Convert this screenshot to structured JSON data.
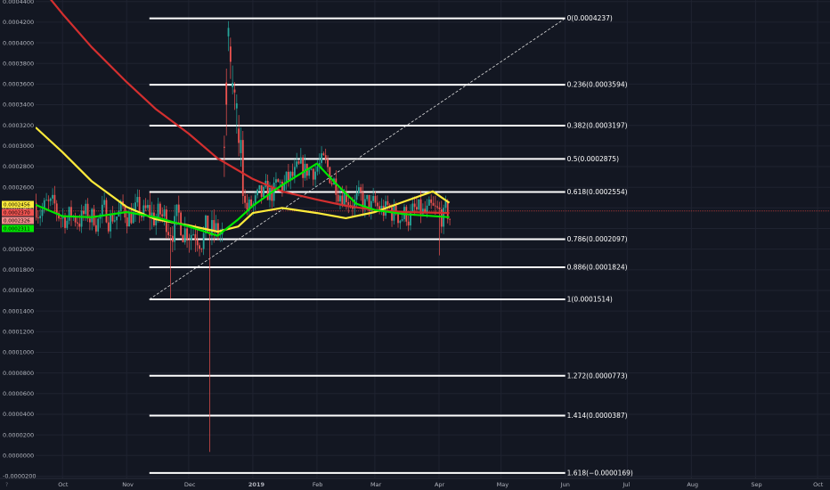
{
  "chart_data": {
    "type": "candlestick",
    "axis_label_y": "",
    "y_ticks": [
      "0.0004400",
      "0.0004200",
      "0.0004000",
      "0.0003800",
      "0.0003600",
      "0.0003400",
      "0.0003200",
      "0.0003000",
      "0.0002800",
      "0.0002600",
      "0.0002400",
      "0.0002200",
      "0.0002000",
      "0.0001800",
      "0.0001600",
      "0.0001400",
      "0.0001200",
      "0.0001000",
      "0.0000800",
      "0.0000600",
      "0.0000400",
      "0.0000200",
      "0.0000000",
      "-0.0000200"
    ],
    "x_ticks": [
      {
        "label": "Oct",
        "date": "2018-10-01"
      },
      {
        "label": "Nov",
        "date": "2018-11-01"
      },
      {
        "label": "Dec",
        "date": "2018-12-01"
      },
      {
        "label": "2019",
        "date": "2019-01-01"
      },
      {
        "label": "Feb",
        "date": "2019-02-01"
      },
      {
        "label": "Mar",
        "date": "2019-03-01"
      },
      {
        "label": "Apr",
        "date": "2019-04-01"
      },
      {
        "label": "May",
        "date": "2019-05-01"
      },
      {
        "label": "Jun",
        "date": "2019-06-01"
      },
      {
        "label": "Jul",
        "date": "2019-07-01"
      },
      {
        "label": "Aug",
        "date": "2019-08-01"
      },
      {
        "label": "Sep",
        "date": "2019-09-01"
      },
      {
        "label": "Oct",
        "date": "2019-10-01"
      }
    ],
    "x_range": [
      "2018-09-18",
      "2019-10-07"
    ],
    "y_range": [
      -2.22e-05,
      0.0004415
    ],
    "grid": true,
    "fib_levels": [
      {
        "label": "0(0.0004237)",
        "value": 0.0004237
      },
      {
        "label": "0.236(0.0003594)",
        "value": 0.0003594
      },
      {
        "label": "0.382(0.0003197)",
        "value": 0.0003197
      },
      {
        "label": "0.5(0.0002875)",
        "value": 0.0002875
      },
      {
        "label": "0.618(0.0002554)",
        "value": 0.0002554
      },
      {
        "label": "0.786(0.0002097)",
        "value": 0.0002097
      },
      {
        "label": "0.886(0.0001824)",
        "value": 0.0001824
      },
      {
        "label": "1(0.0001514)",
        "value": 0.0001514
      },
      {
        "label": "1.272(0.0000773)",
        "value": 7.73e-05
      },
      {
        "label": "1.414(0.0000387)",
        "value": 3.87e-05
      },
      {
        "label": "1.618(−0.0000169)",
        "value": -1.69e-05
      }
    ],
    "fib_x_range": [
      "2018-11-12",
      "2019-06-01"
    ],
    "trend_line": [
      {
        "date": "2018-11-12",
        "value": 0.0001514
      },
      {
        "date": "2019-06-01",
        "value": 0.0004237
      }
    ],
    "price_badges": [
      {
        "text": "0.0002456",
        "value": 0.0002456,
        "bg": "#ffeb3b",
        "fg": "#000000"
      },
      {
        "text": "0.0002370",
        "value": 0.000237,
        "bg": "#ef5350",
        "fg": "#000000"
      },
      {
        "text": "0.0002326",
        "value": 0.0002326,
        "bg": "#f28a8a",
        "fg": "#000000"
      },
      {
        "text": "0.0002311",
        "value": 0.0002311,
        "bg": "#00e600",
        "fg": "#000000"
      }
    ],
    "current_price": 0.000237,
    "series": [
      {
        "color": "#d32f2f",
        "points": [
          [
            "2018-09-18",
            0.00046
          ],
          [
            "2018-10-01",
            0.000428
          ],
          [
            "2018-10-15",
            0.000396
          ],
          [
            "2018-11-01",
            0.000362
          ],
          [
            "2018-11-15",
            0.000336
          ],
          [
            "2018-12-01",
            0.000312
          ],
          [
            "2018-12-15",
            0.000288
          ],
          [
            "2019-01-01",
            0.000268
          ],
          [
            "2019-01-15",
            0.000256
          ],
          [
            "2019-02-01",
            0.000248
          ],
          [
            "2019-02-15",
            0.000242
          ],
          [
            "2019-03-01",
            0.000238
          ],
          [
            "2019-03-15",
            0.000236
          ],
          [
            "2019-04-06",
            0.000235
          ]
        ]
      },
      {
        "color": "#ffeb3b",
        "points": [
          [
            "2018-09-18",
            0.000318
          ],
          [
            "2018-10-01",
            0.000294
          ],
          [
            "2018-10-15",
            0.000266
          ],
          [
            "2018-11-01",
            0.000241
          ],
          [
            "2018-11-15",
            0.000229
          ],
          [
            "2018-12-01",
            0.000223
          ],
          [
            "2018-12-15",
            0.000217
          ],
          [
            "2018-12-25",
            0.000222
          ],
          [
            "2019-01-01",
            0.000235
          ],
          [
            "2019-01-15",
            0.00024
          ],
          [
            "2019-02-01",
            0.000235
          ],
          [
            "2019-02-15",
            0.00023
          ],
          [
            "2019-03-01",
            0.000236
          ],
          [
            "2019-03-15",
            0.000246
          ],
          [
            "2019-03-29",
            0.000256
          ],
          [
            "2019-04-06",
            0.000245
          ]
        ]
      },
      {
        "color": "#00e600",
        "points": [
          [
            "2018-09-18",
            0.000243
          ],
          [
            "2018-10-01",
            0.000232
          ],
          [
            "2018-10-15",
            0.000231
          ],
          [
            "2018-11-01",
            0.000236
          ],
          [
            "2018-11-15",
            0.000231
          ],
          [
            "2018-12-01",
            0.000222
          ],
          [
            "2018-12-15",
            0.000213
          ],
          [
            "2018-12-25",
            0.000229
          ],
          [
            "2019-01-01",
            0.000242
          ],
          [
            "2019-01-15",
            0.000262
          ],
          [
            "2019-02-01",
            0.000283
          ],
          [
            "2019-02-10",
            0.000264
          ],
          [
            "2019-02-20",
            0.000244
          ],
          [
            "2019-03-01",
            0.000238
          ],
          [
            "2019-03-15",
            0.000234
          ],
          [
            "2019-04-06",
            0.000231
          ]
        ]
      }
    ]
  }
}
